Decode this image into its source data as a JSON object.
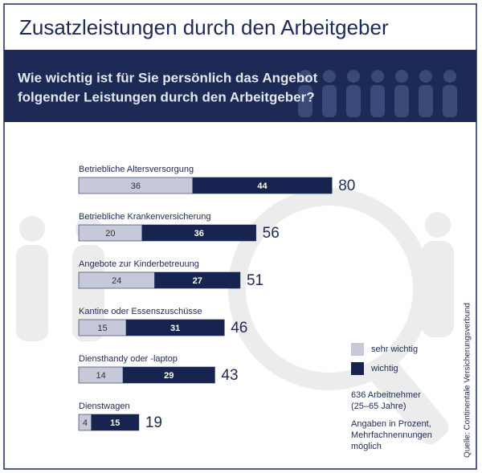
{
  "chart_data": {
    "type": "bar",
    "stacked": true,
    "orientation": "horizontal",
    "title": "Zusatzleistungen durch den Arbeitgeber",
    "subtitle": [
      "Wie wichtig ist für Sie persönlich das Angebot",
      "folgender Leistungen durch den Arbeitgeber?"
    ],
    "categories": [
      "Betriebliche Altersversorgung",
      "Betriebliche Krankenversicherung",
      "Angebote zur Kinderbetreuung",
      "Kantine oder Essenszuschüsse",
      "Diensthandy oder -laptop",
      "Dienstwagen"
    ],
    "series": [
      {
        "name": "sehr wichtig",
        "color": "#c6c9d9",
        "values": [
          36,
          20,
          24,
          15,
          14,
          4
        ]
      },
      {
        "name": "wichtig",
        "color": "#16244f",
        "values": [
          44,
          36,
          27,
          31,
          29,
          15
        ]
      }
    ],
    "totals": [
      80,
      56,
      51,
      46,
      43,
      19
    ],
    "notes": [
      [
        "636 Arbeitnehmer",
        "(25–65 Jahre)"
      ],
      [
        "Angaben in Prozent,",
        "Mehrfachnennungen",
        "möglich"
      ]
    ],
    "source": "Quelle: Continentale Versicherungsverbund"
  }
}
